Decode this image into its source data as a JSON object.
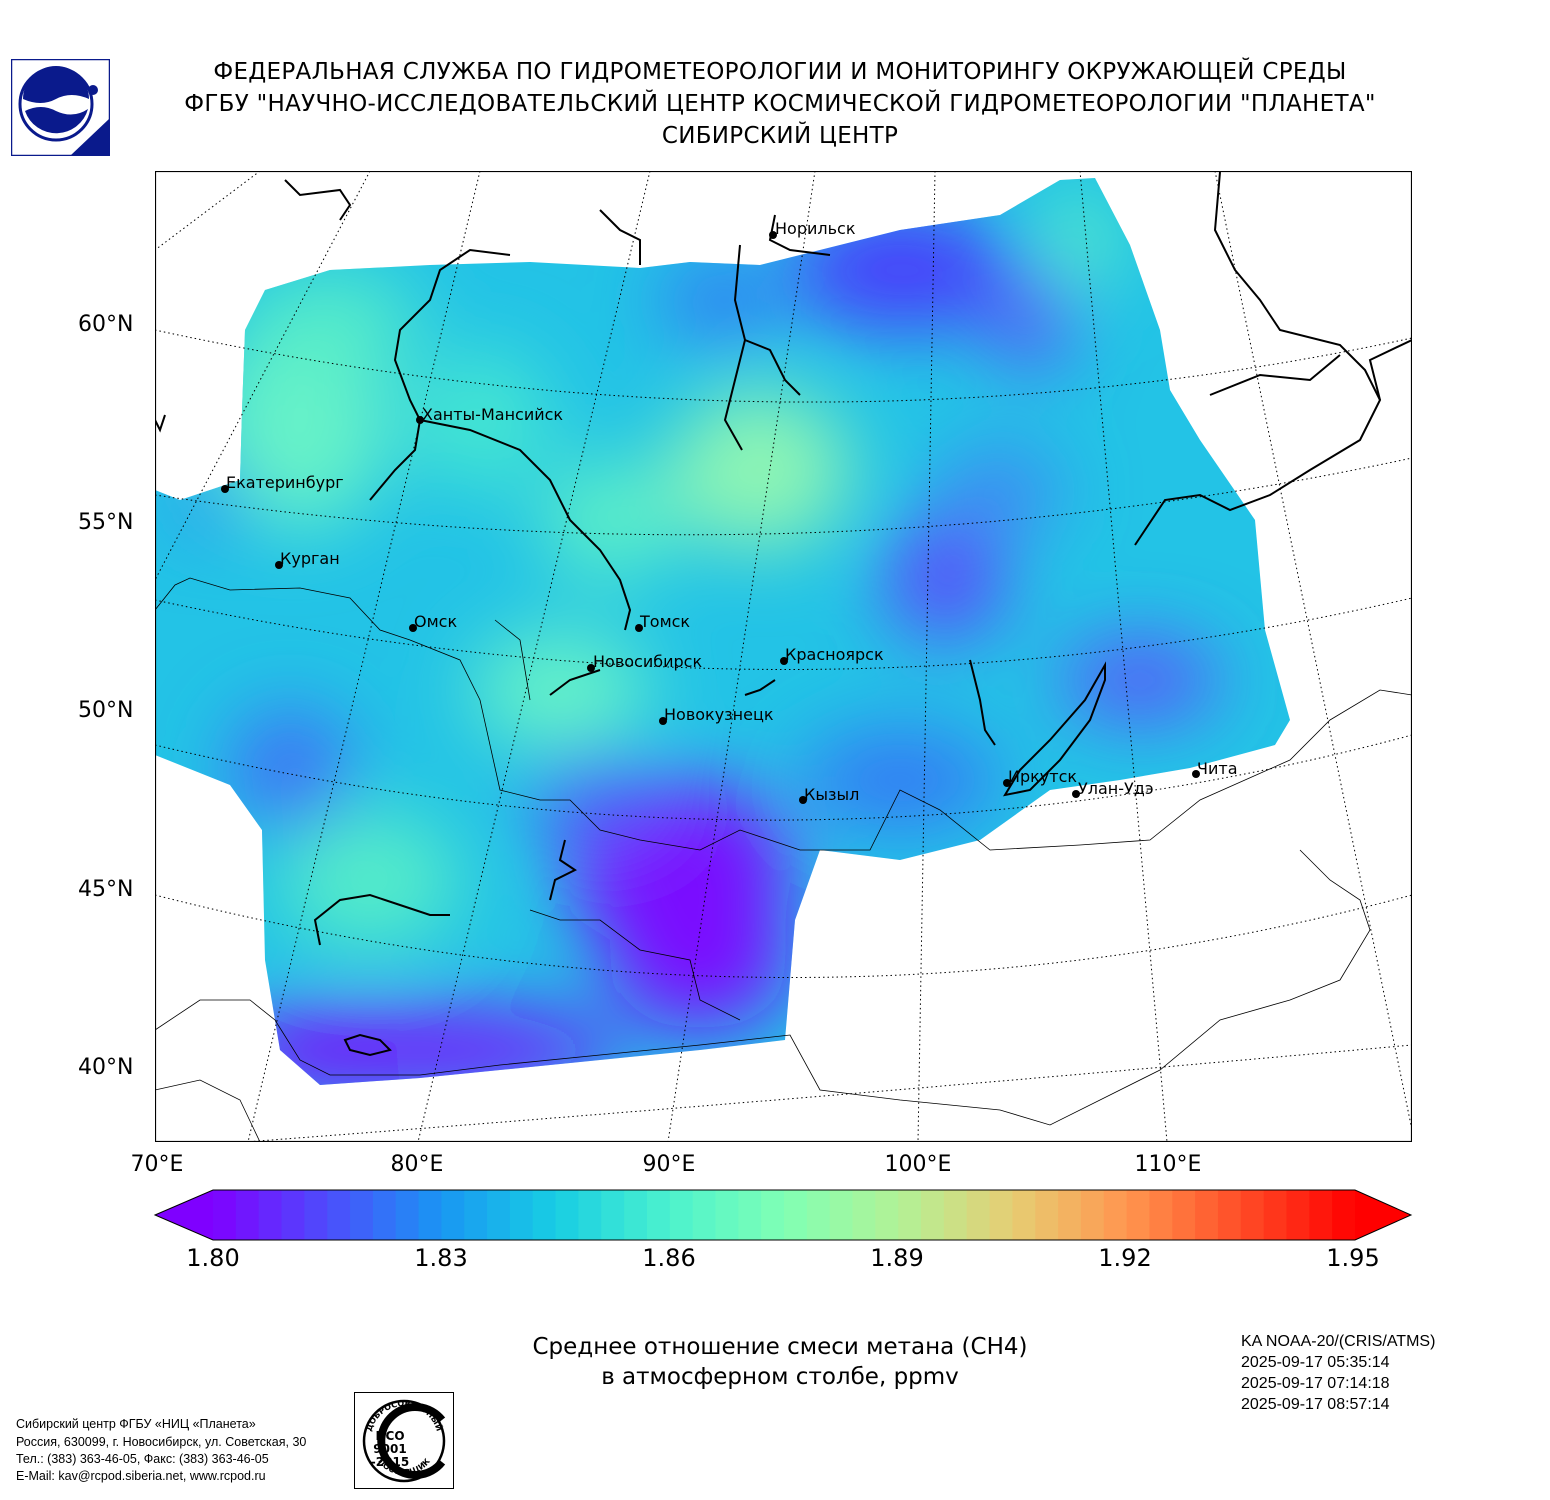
{
  "header": {
    "line1": "ФЕДЕРАЛЬНАЯ СЛУЖБА ПО ГИДРОМЕТЕОРОЛОГИИ И МОНИТОРИНГУ ОКРУЖАЮЩЕЙ СРЕДЫ",
    "line2": "ФГБУ \"НАУЧНО-ИССЛЕДОВАТЕЛЬСКИЙ ЦЕНТР КОСМИЧЕСКОЙ ГИДРОМЕТЕОРОЛОГИИ \"ПЛАНЕТА\"",
    "line3": "СИБИРСКИЙ ЦЕНТР"
  },
  "map": {
    "lat_labels": [
      "60°N",
      "55°N",
      "50°N",
      "45°N",
      "40°N"
    ],
    "lon_labels": [
      "70°E",
      "80°E",
      "90°E",
      "100°E",
      "110°E"
    ],
    "cities": [
      "Норильск",
      "Ханты-Мансийск",
      "Екатеринбург",
      "Курган",
      "Омск",
      "Томск",
      "Новосибирск",
      "Красноярск",
      "Новокузнецк",
      "Иркутск",
      "Улан-Удэ",
      "Чита",
      "Кызыл"
    ]
  },
  "colorbar": {
    "tick_labels": [
      "1.80",
      "1.83",
      "1.86",
      "1.89",
      "1.92",
      "1.95"
    ],
    "min": 1.8,
    "max": 1.95,
    "colormap": [
      "#7f00ff",
      "#4d4dfc",
      "#1996f3",
      "#18cde3",
      "#4cf2ce",
      "#80ffb4",
      "#b2f296",
      "#e6cd73",
      "#ff964f",
      "#ff4d27",
      "#ff0000"
    ]
  },
  "caption": {
    "line1": "Среднее отношение смеси метана (CH4)",
    "line2": "в атмосферном столбе, ppmv"
  },
  "satellite": {
    "instrument": "KA NOAA-20/(CRIS/ATMS)",
    "times": [
      "2025-09-17 05:35:14",
      "2025-09-17 07:14:18",
      "2025-09-17 08:57:14"
    ]
  },
  "footer": {
    "contact_lines": [
      "Сибирский центр ФГБУ «НИЦ «Планета»",
      "Россия, 630099, г. Новосибирск, ул. Советская, 30",
      "Тел.: (383) 363-46-05, Факс: (383) 363-46-05",
      "E-Mail: kav@rcpod.siberia.net, www.rcpod.ru"
    ],
    "iso_badge": {
      "top_text": "ДОБРОСОВЕСТНЫЙ",
      "line1": "ИСО",
      "line2": "9001",
      "line3": "-2015",
      "bottom_text": "ПОСТАВЩИК"
    }
  }
}
